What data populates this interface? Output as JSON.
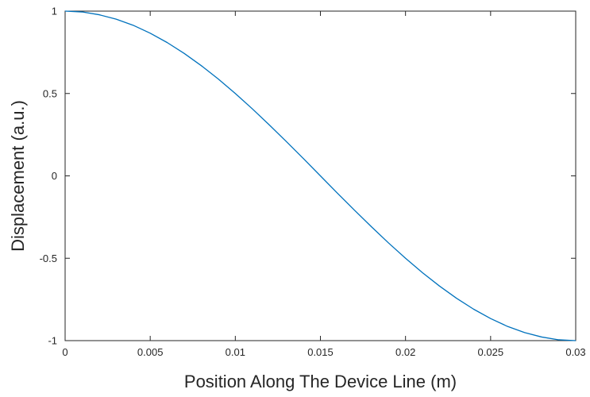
{
  "chart_data": {
    "type": "line",
    "title": "",
    "xlabel": "Position Along The Device Line (m)",
    "ylabel": "Displacement (a.u.)",
    "xlim": [
      0,
      0.03
    ],
    "ylim": [
      -1,
      1
    ],
    "xticks": [
      0,
      0.005,
      0.01,
      0.015,
      0.02,
      0.025,
      0.03
    ],
    "xtick_labels": [
      "0",
      "0.005",
      "0.01",
      "0.015",
      "0.02",
      "0.025",
      "0.03"
    ],
    "yticks": [
      -1,
      -0.5,
      0,
      0.5,
      1
    ],
    "ytick_labels": [
      "-1",
      "-0.5",
      "0",
      "0.5",
      "1"
    ],
    "grid": false,
    "legend": "none",
    "series": [
      {
        "color": "#0072BD",
        "x": [
          0,
          0.001,
          0.002,
          0.003,
          0.004,
          0.005,
          0.006,
          0.007,
          0.008,
          0.009,
          0.01,
          0.011,
          0.012,
          0.013,
          0.014,
          0.015,
          0.016,
          0.017,
          0.018,
          0.019,
          0.02,
          0.021,
          0.022,
          0.023,
          0.024,
          0.025,
          0.026,
          0.027,
          0.028,
          0.029,
          0.03
        ],
        "y": [
          1,
          0.995,
          0.978,
          0.951,
          0.914,
          0.866,
          0.809,
          0.743,
          0.669,
          0.588,
          0.5,
          0.407,
          0.309,
          0.208,
          0.105,
          0,
          -0.105,
          -0.208,
          -0.309,
          -0.407,
          -0.5,
          -0.588,
          -0.669,
          -0.743,
          -0.809,
          -0.866,
          -0.914,
          -0.951,
          -0.978,
          -0.995,
          -1
        ]
      }
    ]
  }
}
